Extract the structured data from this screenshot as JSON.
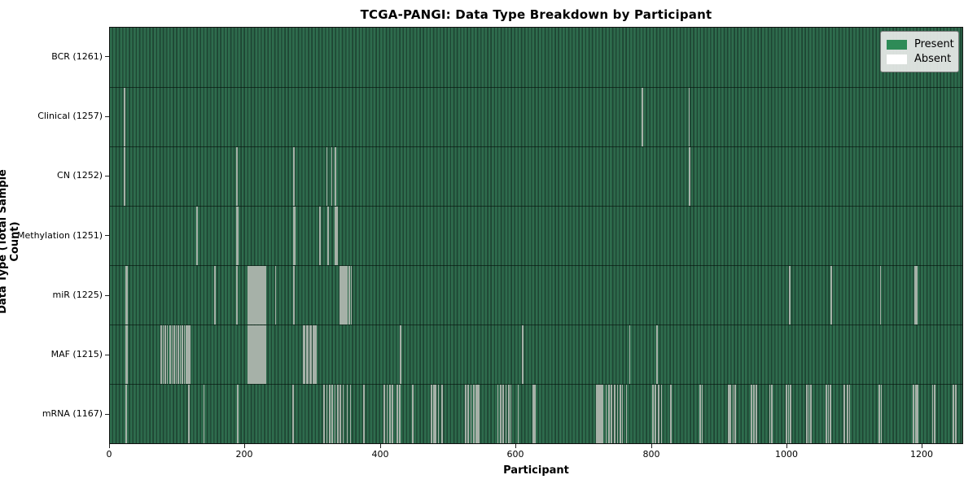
{
  "title": "TCGA-PANGI: Data Type Breakdown by Participant",
  "legend": {
    "present_label": "Present",
    "absent_label": "Absent",
    "present_color": "#2e8b57",
    "absent_color": "#ffffff"
  },
  "chart_data": {
    "type": "heatmap",
    "title": "TCGA-PANGI: Data Type Breakdown by Participant",
    "xlabel": "Participant",
    "ylabel": "Data Type (Total Sample Count)",
    "legend_entries": [
      "Present",
      "Absent"
    ],
    "legend_position": "upper right",
    "grid": false,
    "colors": {
      "present": "#2e8b57",
      "absent": "#ffffff"
    },
    "x": {
      "range": [
        0,
        1261
      ],
      "ticks": [
        0,
        200,
        400,
        600,
        800,
        1000,
        1200
      ]
    },
    "n_participants": 1261,
    "rows": [
      {
        "label": "BCR (1261)",
        "data_type": "BCR",
        "present_count": 1261,
        "absent_count": 0,
        "absent_participants": []
      },
      {
        "label": "Clinical (1257)",
        "data_type": "Clinical",
        "present_count": 1257,
        "absent_count": 4,
        "absent_participants": [
          20,
          21,
          787,
          856
        ]
      },
      {
        "label": "CN (1252)",
        "data_type": "CN",
        "present_count": 1252,
        "absent_count": 9,
        "absent_participants": [
          20,
          21,
          187,
          271,
          320,
          327,
          333,
          856,
          857
        ]
      },
      {
        "label": "Methylation (1251)",
        "data_type": "Methylation",
        "present_count": 1251,
        "absent_count": 10,
        "absent_participants": [
          128,
          187,
          188,
          271,
          272,
          310,
          322,
          333,
          334,
          335
        ]
      },
      {
        "label": "miR (1225)",
        "data_type": "miR",
        "present_count": 1225,
        "absent_count": 36,
        "absent_participants": [
          23,
          24,
          154,
          187,
          204,
          205,
          207,
          209,
          211,
          213,
          215,
          217,
          219,
          221,
          223,
          225,
          227,
          229,
          244,
          271,
          340,
          342,
          344,
          346,
          348,
          350,
          353,
          356,
          1004,
          1005,
          1066,
          1139,
          1190,
          1191,
          1192,
          1193
        ]
      },
      {
        "label": "MAF (1215)",
        "data_type": "MAF",
        "present_count": 1215,
        "absent_count": 46,
        "absent_participants": [
          23,
          24,
          75,
          78,
          81,
          84,
          88,
          91,
          94,
          97,
          100,
          103,
          106,
          109,
          112,
          115,
          117,
          204,
          205,
          207,
          209,
          211,
          213,
          215,
          217,
          219,
          221,
          223,
          225,
          227,
          229,
          285,
          287,
          290,
          292,
          295,
          297,
          300,
          302,
          304,
          429,
          609,
          610,
          768,
          808,
          809
        ]
      },
      {
        "label": "mRNA (1167)",
        "data_type": "mRNA",
        "present_count": 1167,
        "absent_count": 94,
        "absent_participants": [
          23,
          116,
          138,
          188,
          270,
          316,
          320,
          324,
          328,
          332,
          336,
          340,
          344,
          350,
          355,
          375,
          405,
          409,
          413,
          417,
          424,
          428,
          447,
          475,
          478,
          481,
          485,
          490,
          525,
          529,
          533,
          537,
          541,
          543,
          545,
          573,
          577,
          581,
          585,
          589,
          592,
          603,
          625,
          628,
          719,
          721,
          723,
          725,
          728,
          733,
          737,
          741,
          746,
          750,
          754,
          757,
          763,
          802,
          806,
          811,
          815,
          829,
          872,
          875,
          914,
          917,
          921,
          924,
          948,
          952,
          955,
          975,
          978,
          1000,
          1003,
          1006,
          1030,
          1033,
          1036,
          1059,
          1062,
          1065,
          1085,
          1090,
          1093,
          1137,
          1140,
          1188,
          1191,
          1194,
          1216,
          1219,
          1247,
          1250
        ]
      }
    ]
  }
}
